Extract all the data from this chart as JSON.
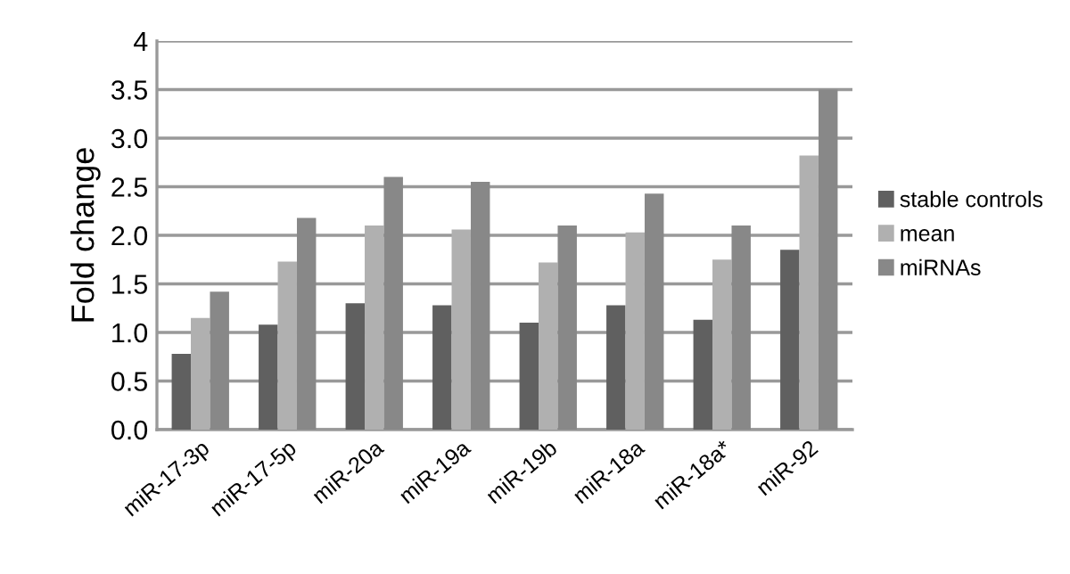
{
  "chart_data": {
    "type": "bar",
    "ylabel": "Fold change",
    "categories": [
      "miR-17-3p",
      "miR-17-5p",
      "miR-20a",
      "miR-19a",
      "miR-19b",
      "miR-18a",
      "miR-18a*",
      "miR-92"
    ],
    "series": [
      {
        "name": "stable controls",
        "color": "#606060",
        "values": [
          0.78,
          1.08,
          1.3,
          1.28,
          1.1,
          1.28,
          1.13,
          1.85
        ]
      },
      {
        "name": "mean",
        "color": "#b0b0b0",
        "values": [
          1.15,
          1.73,
          2.1,
          2.06,
          1.72,
          2.03,
          1.75,
          2.82
        ]
      },
      {
        "name": "miRNAs",
        "color": "#888888",
        "values": [
          1.42,
          2.18,
          2.6,
          2.55,
          2.1,
          2.43,
          2.1,
          3.5
        ]
      }
    ],
    "ylim": [
      0,
      4
    ],
    "yticks": [
      {
        "value": 0,
        "label": "0.0"
      },
      {
        "value": 0.5,
        "label": "0.5"
      },
      {
        "value": 1,
        "label": "1.0"
      },
      {
        "value": 1.5,
        "label": "1.5"
      },
      {
        "value": 2,
        "label": "2.0"
      },
      {
        "value": 2.5,
        "label": "2.5"
      },
      {
        "value": 3,
        "label": "3.0"
      },
      {
        "value": 3.5,
        "label": "3.5"
      },
      4
    ],
    "grid": "y",
    "legend": "right"
  }
}
